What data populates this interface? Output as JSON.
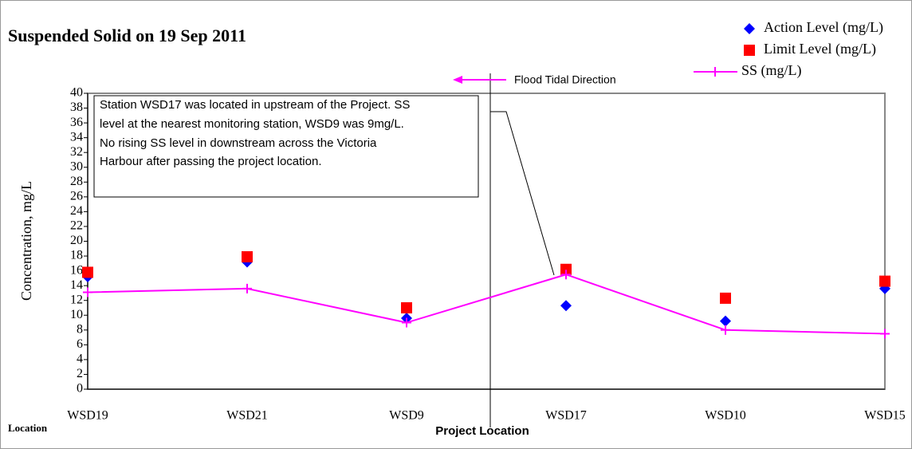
{
  "chart_data": {
    "type": "line",
    "title": "Suspended Solid on 19 Sep 2011",
    "y_label": "Concentration, mg/L",
    "x_corner_label": "Location",
    "x_label": "Project Location",
    "arrow_label": "Flood Tidal Direction",
    "annotation_box": [
      "Station WSD17 was located in upstream of the Project. SS",
      "level at the nearest monitoring station, WSD9 was 9mg/L.",
      "No rising SS level in downstream across the Victoria",
      "Harbour after passing the project location."
    ],
    "categories": [
      "WSD19",
      "WSD21",
      "WSD9",
      "WSD17",
      "WSD10",
      "WSD15"
    ],
    "series": [
      {
        "name": "Action Level (mg/L)",
        "color": "#0000ff",
        "marker": "diamond",
        "values": [
          15.2,
          17.2,
          9.6,
          11.3,
          9.2,
          13.6
        ]
      },
      {
        "name": "Limit Level (mg/L)",
        "color": "#ff0000",
        "marker": "square",
        "values": [
          15.8,
          17.9,
          11.0,
          16.2,
          12.3,
          14.6
        ]
      },
      {
        "name": "SS (mg/L)",
        "color": "#ff00ff",
        "marker": "line",
        "values": [
          13.1,
          13.6,
          9.0,
          15.5,
          8.0,
          7.5
        ]
      }
    ],
    "ylim": [
      0,
      40
    ],
    "yticks": [
      0,
      2,
      4,
      6,
      8,
      10,
      12,
      14,
      16,
      18,
      20,
      22,
      24,
      26,
      28,
      30,
      32,
      34,
      36,
      38,
      40
    ]
  }
}
